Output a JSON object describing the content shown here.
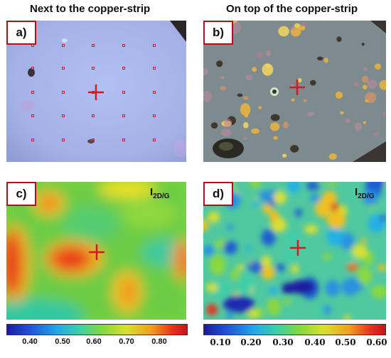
{
  "titles": {
    "left": "Next to the copper-strip",
    "right": "On top of the copper-strip"
  },
  "panels": {
    "a": {
      "label": "a)"
    },
    "b": {
      "label": "b)"
    },
    "c": {
      "label": "c)",
      "intensity": "I",
      "intensity_sub": "2D/G"
    },
    "d": {
      "label": "d)",
      "intensity": "I",
      "intensity_sub": "2D/G"
    }
  },
  "colorbars": {
    "left": {
      "ticks": [
        "0.40",
        "0.50",
        "0.60",
        "0.70",
        "0.80"
      ]
    },
    "right": {
      "ticks": [
        "0.10",
        "0.20",
        "0.30",
        "0.40",
        "0.50",
        "0.60"
      ]
    }
  },
  "colors": {
    "crosshair": "#e0141c",
    "label_border": "#b0101a",
    "micrograph_a": "#a9b6ea",
    "micrograph_b": "#7d8a8c"
  }
}
